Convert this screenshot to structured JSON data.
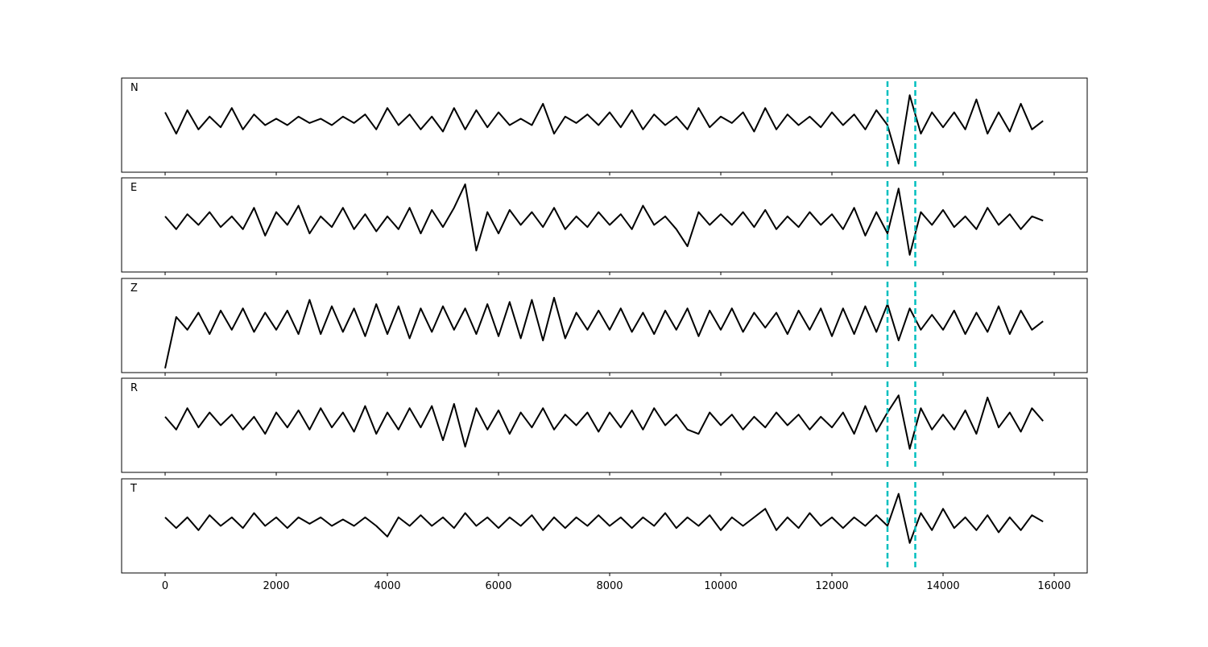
{
  "chart_data": {
    "type": "line",
    "subplots": true,
    "x": [
      0,
      200,
      400,
      600,
      800,
      1000,
      1200,
      1400,
      1600,
      1800,
      2000,
      2200,
      2400,
      2600,
      2800,
      3000,
      3200,
      3400,
      3600,
      3800,
      4000,
      4200,
      4400,
      4600,
      4800,
      5000,
      5200,
      5400,
      5600,
      5800,
      6000,
      6200,
      6400,
      6600,
      6800,
      7000,
      7200,
      7400,
      7600,
      7800,
      8000,
      8200,
      8400,
      8600,
      8800,
      9000,
      9200,
      9400,
      9600,
      9800,
      10000,
      10200,
      10400,
      10600,
      10800,
      11000,
      11200,
      11400,
      11600,
      11800,
      12000,
      12200,
      12400,
      12600,
      12800,
      13000,
      13200,
      13400,
      13600,
      13800,
      14000,
      14200,
      14400,
      14600,
      14800,
      15000,
      15200,
      15400,
      15600,
      15800
    ],
    "series": [
      {
        "name": "N",
        "color": "#000000",
        "values": [
          0.2,
          -0.3,
          0.25,
          -0.2,
          0.1,
          -0.15,
          0.3,
          -0.2,
          0.15,
          -0.1,
          0.05,
          -0.1,
          0.1,
          -0.05,
          0.05,
          -0.1,
          0.1,
          -0.05,
          0.15,
          -0.2,
          0.3,
          -0.1,
          0.15,
          -0.2,
          0.1,
          -0.25,
          0.3,
          -0.2,
          0.25,
          -0.15,
          0.2,
          -0.1,
          0.05,
          -0.1,
          0.4,
          -0.3,
          0.1,
          -0.05,
          0.15,
          -0.1,
          0.2,
          -0.15,
          0.25,
          -0.2,
          0.15,
          -0.1,
          0.1,
          -0.2,
          0.3,
          -0.15,
          0.1,
          -0.05,
          0.2,
          -0.25,
          0.3,
          -0.2,
          0.15,
          -0.1,
          0.1,
          -0.15,
          0.2,
          -0.1,
          0.15,
          -0.2,
          0.25,
          -0.1,
          -1.0,
          0.6,
          -0.3,
          0.2,
          -0.15,
          0.2,
          -0.2,
          0.5,
          -0.3,
          0.2,
          -0.25,
          0.4,
          -0.2,
          0.0
        ]
      },
      {
        "name": "E",
        "color": "#000000",
        "values": [
          0.1,
          -0.2,
          0.15,
          -0.1,
          0.2,
          -0.15,
          0.1,
          -0.2,
          0.3,
          -0.35,
          0.2,
          -0.1,
          0.35,
          -0.3,
          0.1,
          -0.15,
          0.3,
          -0.2,
          0.15,
          -0.25,
          0.1,
          -0.2,
          0.3,
          -0.3,
          0.25,
          -0.15,
          0.3,
          0.85,
          -0.7,
          0.2,
          -0.3,
          0.25,
          -0.1,
          0.2,
          -0.15,
          0.3,
          -0.2,
          0.1,
          -0.15,
          0.2,
          -0.1,
          0.15,
          -0.2,
          0.35,
          -0.1,
          0.1,
          -0.2,
          -0.6,
          0.2,
          -0.1,
          0.15,
          -0.1,
          0.2,
          -0.15,
          0.25,
          -0.2,
          0.1,
          -0.15,
          0.2,
          -0.1,
          0.15,
          -0.2,
          0.3,
          -0.35,
          0.2,
          -0.3,
          0.75,
          -0.8,
          0.2,
          -0.1,
          0.25,
          -0.15,
          0.1,
          -0.2,
          0.3,
          -0.1,
          0.15,
          -0.2,
          0.1,
          0.0
        ]
      },
      {
        "name": "Z",
        "color": "#000000",
        "values": [
          -1.1,
          0.1,
          -0.2,
          0.2,
          -0.3,
          0.25,
          -0.2,
          0.3,
          -0.25,
          0.2,
          -0.2,
          0.25,
          -0.3,
          0.5,
          -0.3,
          0.35,
          -0.25,
          0.3,
          -0.35,
          0.4,
          -0.3,
          0.35,
          -0.4,
          0.3,
          -0.25,
          0.35,
          -0.2,
          0.3,
          -0.3,
          0.4,
          -0.35,
          0.45,
          -0.4,
          0.5,
          -0.45,
          0.55,
          -0.4,
          0.2,
          -0.2,
          0.25,
          -0.2,
          0.3,
          -0.25,
          0.2,
          -0.3,
          0.25,
          -0.2,
          0.3,
          -0.35,
          0.25,
          -0.2,
          0.3,
          -0.25,
          0.2,
          -0.15,
          0.2,
          -0.3,
          0.25,
          -0.2,
          0.3,
          -0.35,
          0.3,
          -0.3,
          0.35,
          -0.25,
          0.4,
          -0.45,
          0.3,
          -0.2,
          0.15,
          -0.2,
          0.25,
          -0.3,
          0.2,
          -0.25,
          0.35,
          -0.3,
          0.25,
          -0.2,
          0.0
        ]
      },
      {
        "name": "R",
        "color": "#000000",
        "values": [
          0.1,
          -0.2,
          0.3,
          -0.15,
          0.2,
          -0.1,
          0.15,
          -0.2,
          0.1,
          -0.3,
          0.2,
          -0.15,
          0.25,
          -0.2,
          0.3,
          -0.15,
          0.2,
          -0.25,
          0.35,
          -0.3,
          0.2,
          -0.2,
          0.3,
          -0.15,
          0.35,
          -0.45,
          0.4,
          -0.6,
          0.3,
          -0.2,
          0.25,
          -0.3,
          0.2,
          -0.15,
          0.3,
          -0.2,
          0.15,
          -0.1,
          0.2,
          -0.25,
          0.2,
          -0.15,
          0.25,
          -0.2,
          0.3,
          -0.1,
          0.15,
          -0.2,
          -0.3,
          0.2,
          -0.1,
          0.15,
          -0.2,
          0.1,
          -0.15,
          0.2,
          -0.1,
          0.15,
          -0.2,
          0.1,
          -0.15,
          0.2,
          -0.3,
          0.35,
          -0.25,
          0.2,
          0.6,
          -0.65,
          0.3,
          -0.2,
          0.15,
          -0.2,
          0.25,
          -0.3,
          0.55,
          -0.15,
          0.2,
          -0.25,
          0.3,
          0.0
        ]
      },
      {
        "name": "T",
        "color": "#000000",
        "values": [
          0.1,
          -0.15,
          0.1,
          -0.2,
          0.15,
          -0.1,
          0.1,
          -0.15,
          0.2,
          -0.1,
          0.1,
          -0.15,
          0.1,
          -0.05,
          0.1,
          -0.1,
          0.05,
          -0.1,
          0.1,
          -0.1,
          -0.35,
          0.1,
          -0.1,
          0.15,
          -0.1,
          0.1,
          -0.15,
          0.2,
          -0.1,
          0.1,
          -0.15,
          0.1,
          -0.1,
          0.15,
          -0.2,
          0.1,
          -0.15,
          0.1,
          -0.1,
          0.15,
          -0.1,
          0.1,
          -0.15,
          0.1,
          -0.1,
          0.2,
          -0.15,
          0.1,
          -0.1,
          0.15,
          -0.2,
          0.1,
          -0.1,
          0.1,
          0.3,
          -0.2,
          0.1,
          -0.15,
          0.2,
          -0.1,
          0.1,
          -0.15,
          0.1,
          -0.1,
          0.15,
          -0.1,
          0.65,
          -0.5,
          0.2,
          -0.2,
          0.3,
          -0.15,
          0.1,
          -0.2,
          0.15,
          -0.25,
          0.1,
          -0.2,
          0.15,
          0.0
        ]
      }
    ],
    "xlim": [
      -783,
      16594
    ],
    "xticks": [
      0,
      2000,
      4000,
      6000,
      8000,
      10000,
      12000,
      14000,
      16000
    ],
    "ylim": [
      -1.2,
      1.0
    ],
    "vlines": {
      "x": [
        13000,
        13500
      ],
      "color": "#00bfbf"
    }
  }
}
